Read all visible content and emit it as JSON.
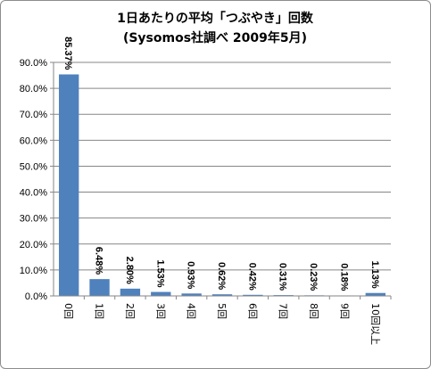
{
  "chart_data": {
    "type": "bar",
    "title": "1日あたりの平均「つぶやき」回数",
    "subtitle": "(Sysomos社調べ 2009年5月)",
    "categories": [
      "0回",
      "1回",
      "2回",
      "3回",
      "4回",
      "5回",
      "6回",
      "7回",
      "8回",
      "9回",
      "10回以上"
    ],
    "values": [
      85.37,
      6.48,
      2.8,
      1.53,
      0.93,
      0.62,
      0.42,
      0.31,
      0.23,
      0.18,
      1.13
    ],
    "data_labels": [
      "85.37%",
      "6.48%",
      "2.80%",
      "1.53%",
      "0.93%",
      "0.62%",
      "0.42%",
      "0.31%",
      "0.23%",
      "0.18%",
      "1.13%"
    ],
    "y_ticks": [
      "0.0%",
      "10.0%",
      "20.0%",
      "30.0%",
      "40.0%",
      "50.0%",
      "60.0%",
      "70.0%",
      "80.0%",
      "90.0%"
    ],
    "ylim": [
      0,
      90
    ],
    "grid": true,
    "legend": "none",
    "bar_color": "#4f81bd",
    "grid_color": "#868686"
  }
}
